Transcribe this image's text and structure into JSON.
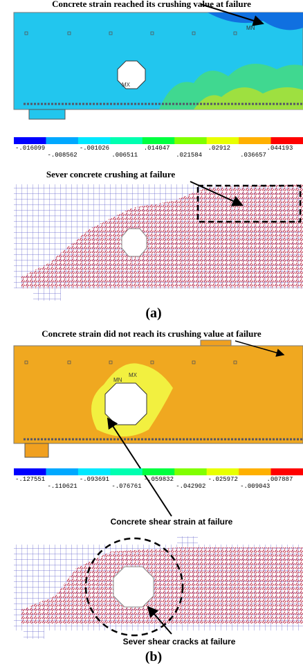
{
  "panel_a": {
    "annotation_top": "Concrete strain reached its crushing value at failure",
    "max_label": "MX",
    "min_label": "MN",
    "legend": [
      "-.016099",
      "-.008562",
      "-.001026",
      ".006511",
      ".014047",
      ".021584",
      ".02912",
      ".036657",
      ".044193"
    ],
    "annotation_mesh": "Sever concrete crushing at failure",
    "caption": "(a)"
  },
  "panel_b": {
    "annotation_top": "Concrete strain did not reach its crushing value at failure",
    "max_label": "MX",
    "min_label": "MN",
    "legend": [
      "-.127551",
      "-.110621",
      "-.093691",
      "-.076761",
      "-.059832",
      "-.042902",
      "-.025972",
      "-.009043",
      ".007887"
    ],
    "annotation_contour": "Concrete shear strain at failure",
    "annotation_mesh": "Sever shear cracks at failure",
    "caption": "(b)"
  }
}
